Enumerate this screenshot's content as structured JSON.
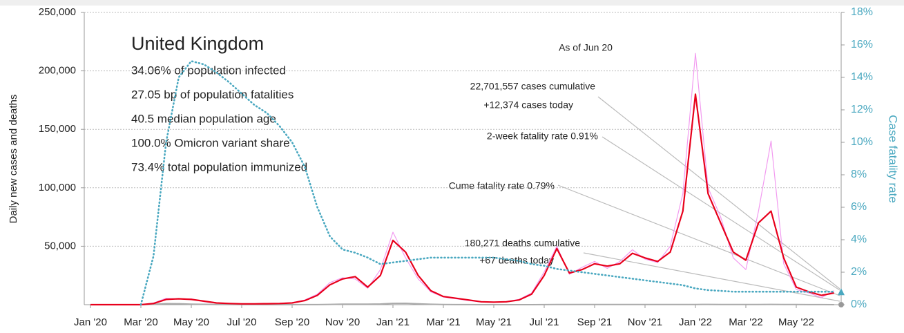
{
  "chart_data": {
    "type": "line",
    "title": "United Kingdom",
    "stats": [
      "34.06% of population infected",
      "27.05 bp of population fatalities",
      "40.5 median population age",
      "100.0% Omicron variant share",
      "73.4% total population immunized"
    ],
    "as_of": "As of Jun 20",
    "annotations": [
      "22,701,557 cases cumulative",
      "+12,374 cases today",
      "2-week fatality rate 0.91%",
      "Cume fatality rate 0.79%",
      "180,271 deaths cumulative",
      "+67 deaths today"
    ],
    "y_label": "Daily new cases and deaths",
    "y2_label": "Case fatality rate",
    "x": [
      "Jan '20",
      null,
      null,
      null,
      "Mar '20",
      null,
      null,
      null,
      "May '20",
      null,
      null,
      null,
      "Jul '20",
      null,
      null,
      null,
      "Sep '20",
      null,
      null,
      null,
      "Nov '20",
      null,
      null,
      null,
      "Jan '21",
      null,
      null,
      null,
      "Mar '21",
      null,
      null,
      null,
      "May '21",
      null,
      null,
      null,
      "Jul '21",
      null,
      null,
      null,
      "Sep '21",
      null,
      null,
      null,
      "Nov '21",
      null,
      null,
      null,
      "Jan '22",
      null,
      null,
      null,
      "Mar '22",
      null,
      null,
      null,
      "May '22",
      null,
      null,
      null
    ],
    "ylim": [
      0,
      250000
    ],
    "yticks": [
      {
        "value": 50000,
        "label": "50,000"
      },
      {
        "value": 100000,
        "label": "100,000"
      },
      {
        "value": 150000,
        "label": "150,000"
      },
      {
        "value": 200000,
        "label": "200,000"
      },
      {
        "value": 250000,
        "label": "250,000"
      }
    ],
    "y2lim": [
      0,
      18
    ],
    "y2ticks": [
      {
        "value": 0,
        "label": "0%"
      },
      {
        "value": 2,
        "label": "2%"
      },
      {
        "value": 4,
        "label": "4%"
      },
      {
        "value": 6,
        "label": "6%"
      },
      {
        "value": 8,
        "label": "8%"
      },
      {
        "value": 10,
        "label": "10%"
      },
      {
        "value": 12,
        "label": "12%"
      },
      {
        "value": 14,
        "label": "14%"
      },
      {
        "value": 16,
        "label": "16%"
      },
      {
        "value": 18,
        "label": "18%"
      }
    ],
    "grid": true,
    "series": [
      {
        "color": "#f29af0",
        "width": 1.2,
        "values": [
          0,
          0,
          0,
          0,
          0,
          1500,
          5500,
          4800,
          5000,
          2500,
          1300,
          900,
          600,
          800,
          900,
          1200,
          1800,
          4000,
          9000,
          19000,
          23000,
          22000,
          14000,
          30000,
          62000,
          40000,
          22000,
          11000,
          6500,
          5000,
          3500,
          2300,
          2000,
          2800,
          4500,
          10000,
          28000,
          50000,
          26000,
          32000,
          37000,
          31000,
          37000,
          47000,
          39000,
          36000,
          50000,
          95000,
          215000,
          100000,
          75000,
          40000,
          30000,
          80000,
          140000,
          35000,
          13000,
          10000,
          6000,
          12000
        ]
      },
      {
        "color": "#aaaaaa",
        "width": 2,
        "values": [
          0,
          0,
          0,
          0,
          0,
          300,
          900,
          800,
          500,
          300,
          150,
          100,
          50,
          30,
          15,
          10,
          15,
          30,
          80,
          250,
          400,
          450,
          450,
          600,
          1100,
          1200,
          700,
          350,
          150,
          60,
          30,
          20,
          10,
          10,
          10,
          20,
          40,
          90,
          100,
          100,
          120,
          140,
          150,
          160,
          140,
          120,
          120,
          130,
          200,
          250,
          200,
          150,
          120,
          200,
          250,
          180,
          100,
          50,
          30,
          20
        ]
      },
      {
        "color": "#e8001c",
        "width": 2.2,
        "values": [
          0,
          0,
          0,
          0,
          0,
          1000,
          4500,
          5000,
          4500,
          3000,
          1500,
          1000,
          700,
          700,
          800,
          1000,
          1500,
          3500,
          8000,
          17000,
          22000,
          24000,
          15000,
          25000,
          55000,
          45000,
          25000,
          12000,
          7000,
          5500,
          4000,
          2500,
          2200,
          2500,
          4000,
          9000,
          25000,
          48000,
          27000,
          30000,
          35000,
          33000,
          35000,
          44000,
          40000,
          37000,
          45000,
          80000,
          180000,
          95000,
          70000,
          45000,
          38000,
          70000,
          80000,
          40000,
          15000,
          11000,
          8000,
          10000
        ]
      },
      {
        "color": "#4aa8c0",
        "width": 2.6,
        "dashed": true,
        "axis": "y2",
        "values": [
          null,
          null,
          null,
          null,
          0,
          3,
          10,
          14,
          15,
          14.8,
          14.3,
          13.7,
          13,
          12.3,
          11.8,
          11,
          10,
          8.5,
          6,
          4.2,
          3.4,
          3.2,
          2.9,
          2.5,
          2.6,
          2.7,
          2.8,
          2.9,
          2.9,
          2.9,
          2.9,
          2.9,
          2.9,
          2.8,
          2.7,
          2.5,
          2.4,
          2.2,
          2.1,
          2.0,
          1.9,
          1.8,
          1.7,
          1.6,
          1.5,
          1.4,
          1.3,
          1.2,
          1.0,
          0.9,
          0.85,
          0.8,
          0.8,
          0.8,
          0.8,
          0.8,
          0.8,
          0.8,
          0.8,
          0.8
        ]
      }
    ]
  }
}
